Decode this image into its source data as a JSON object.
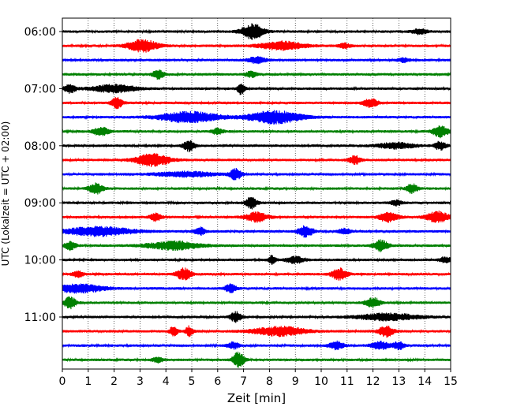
{
  "chart_data": {
    "type": "line",
    "title": "",
    "xlabel": "Zeit  [min]",
    "ylabel": "UTC (Lokalzeit = UTC + 02:00)",
    "xlim": [
      0,
      15
    ],
    "x_ticks": [
      "0",
      "1",
      "2",
      "3",
      "4",
      "5",
      "6",
      "7",
      "8",
      "9",
      "10",
      "11",
      "12",
      "13",
      "14",
      "15"
    ],
    "y_ticks": [
      "06:00",
      "07:00",
      "08:00",
      "09:00",
      "10:00",
      "11:00"
    ],
    "row_interval_min": 15,
    "start_time": "06:00",
    "grid_vertical": true,
    "color_cycle": [
      "#000000",
      "#ff0000",
      "#0000ff",
      "#008000"
    ],
    "rows": [
      {
        "time": "06:00",
        "color": "#000000",
        "events": [
          {
            "t": 7.35,
            "amp": 1.8,
            "dur": 0.6
          },
          {
            "t": 13.8,
            "amp": 0.6,
            "dur": 0.4
          }
        ]
      },
      {
        "time": "06:15",
        "color": "#ff0000",
        "events": [
          {
            "t": 3.1,
            "amp": 1.5,
            "dur": 0.8
          },
          {
            "t": 8.5,
            "amp": 1.0,
            "dur": 1.2
          },
          {
            "t": 10.9,
            "amp": 0.6,
            "dur": 0.3
          }
        ]
      },
      {
        "time": "06:30",
        "color": "#0000ff",
        "events": [
          {
            "t": 7.5,
            "amp": 0.7,
            "dur": 0.5
          },
          {
            "t": 13.2,
            "amp": 0.5,
            "dur": 0.3
          }
        ]
      },
      {
        "time": "06:45",
        "color": "#008000",
        "events": [
          {
            "t": 3.7,
            "amp": 1.1,
            "dur": 0.3
          },
          {
            "t": 7.3,
            "amp": 0.7,
            "dur": 0.3
          }
        ]
      },
      {
        "time": "07:00",
        "color": "#000000",
        "events": [
          {
            "t": 0.3,
            "amp": 1.1,
            "dur": 0.3
          },
          {
            "t": 2.0,
            "amp": 0.9,
            "dur": 1.2
          },
          {
            "t": 6.9,
            "amp": 1.3,
            "dur": 0.2
          }
        ]
      },
      {
        "time": "07:15",
        "color": "#ff0000",
        "events": [
          {
            "t": 2.1,
            "amp": 1.3,
            "dur": 0.3
          },
          {
            "t": 11.9,
            "amp": 1.0,
            "dur": 0.4
          }
        ]
      },
      {
        "time": "07:30",
        "color": "#0000ff",
        "events": [
          {
            "t": 4.9,
            "amp": 1.3,
            "dur": 1.6
          },
          {
            "t": 8.2,
            "amp": 1.5,
            "dur": 1.4
          }
        ]
      },
      {
        "time": "07:45",
        "color": "#008000",
        "events": [
          {
            "t": 1.5,
            "amp": 1.1,
            "dur": 0.4
          },
          {
            "t": 6.0,
            "amp": 0.7,
            "dur": 0.3
          },
          {
            "t": 14.6,
            "amp": 1.4,
            "dur": 0.4
          }
        ]
      },
      {
        "time": "08:00",
        "color": "#000000",
        "events": [
          {
            "t": 4.9,
            "amp": 1.3,
            "dur": 0.3
          },
          {
            "t": 12.9,
            "amp": 0.7,
            "dur": 1.0
          },
          {
            "t": 14.6,
            "amp": 1.0,
            "dur": 0.3
          }
        ]
      },
      {
        "time": "08:15",
        "color": "#ff0000",
        "events": [
          {
            "t": 3.5,
            "amp": 1.5,
            "dur": 0.9
          },
          {
            "t": 11.3,
            "amp": 1.0,
            "dur": 0.3
          }
        ]
      },
      {
        "time": "08:30",
        "color": "#0000ff",
        "events": [
          {
            "t": 4.8,
            "amp": 0.6,
            "dur": 1.6
          },
          {
            "t": 6.7,
            "amp": 1.3,
            "dur": 0.3
          }
        ]
      },
      {
        "time": "08:45",
        "color": "#008000",
        "events": [
          {
            "t": 1.3,
            "amp": 1.2,
            "dur": 0.4
          },
          {
            "t": 13.5,
            "amp": 1.1,
            "dur": 0.3
          }
        ]
      },
      {
        "time": "09:00",
        "color": "#000000",
        "events": [
          {
            "t": 7.3,
            "amp": 1.4,
            "dur": 0.3
          },
          {
            "t": 12.9,
            "amp": 0.6,
            "dur": 0.3
          }
        ]
      },
      {
        "time": "09:15",
        "color": "#ff0000",
        "events": [
          {
            "t": 3.6,
            "amp": 1.0,
            "dur": 0.3
          },
          {
            "t": 7.5,
            "amp": 1.1,
            "dur": 0.6
          },
          {
            "t": 12.6,
            "amp": 1.2,
            "dur": 0.5
          },
          {
            "t": 14.5,
            "amp": 1.3,
            "dur": 0.6
          }
        ]
      },
      {
        "time": "09:30",
        "color": "#0000ff",
        "events": [
          {
            "t": 1.4,
            "amp": 1.1,
            "dur": 1.8
          },
          {
            "t": 5.3,
            "amp": 0.9,
            "dur": 0.3
          },
          {
            "t": 9.4,
            "amp": 1.3,
            "dur": 0.4
          },
          {
            "t": 10.9,
            "amp": 0.7,
            "dur": 0.3
          }
        ]
      },
      {
        "time": "09:45",
        "color": "#008000",
        "events": [
          {
            "t": 0.3,
            "amp": 1.0,
            "dur": 0.3
          },
          {
            "t": 4.3,
            "amp": 1.0,
            "dur": 1.4
          },
          {
            "t": 12.3,
            "amp": 1.3,
            "dur": 0.4
          }
        ]
      },
      {
        "time": "10:00",
        "color": "#000000",
        "events": [
          {
            "t": 8.1,
            "amp": 1.0,
            "dur": 0.2
          },
          {
            "t": 9.0,
            "amp": 0.8,
            "dur": 0.5
          },
          {
            "t": 14.8,
            "amp": 0.7,
            "dur": 0.3
          }
        ]
      },
      {
        "time": "10:15",
        "color": "#ff0000",
        "events": [
          {
            "t": 4.7,
            "amp": 1.4,
            "dur": 0.4
          },
          {
            "t": 10.7,
            "amp": 1.4,
            "dur": 0.4
          },
          {
            "t": 0.6,
            "amp": 0.7,
            "dur": 0.3
          }
        ]
      },
      {
        "time": "10:30",
        "color": "#0000ff",
        "events": [
          {
            "t": 0.6,
            "amp": 1.0,
            "dur": 1.4
          },
          {
            "t": 6.5,
            "amp": 1.0,
            "dur": 0.3
          }
        ]
      },
      {
        "time": "10:45",
        "color": "#008000",
        "events": [
          {
            "t": 0.3,
            "amp": 1.5,
            "dur": 0.3
          },
          {
            "t": 12.0,
            "amp": 1.2,
            "dur": 0.4
          }
        ]
      },
      {
        "time": "11:00",
        "color": "#000000",
        "events": [
          {
            "t": 6.7,
            "amp": 1.2,
            "dur": 0.3
          },
          {
            "t": 12.6,
            "amp": 0.8,
            "dur": 1.6
          }
        ]
      },
      {
        "time": "11:15",
        "color": "#ff0000",
        "events": [
          {
            "t": 4.3,
            "amp": 1.4,
            "dur": 0.2
          },
          {
            "t": 4.9,
            "amp": 1.2,
            "dur": 0.2
          },
          {
            "t": 8.4,
            "amp": 1.1,
            "dur": 1.4
          },
          {
            "t": 12.5,
            "amp": 1.3,
            "dur": 0.4
          }
        ]
      },
      {
        "time": "11:30",
        "color": "#0000ff",
        "events": [
          {
            "t": 6.6,
            "amp": 0.8,
            "dur": 0.3
          },
          {
            "t": 10.6,
            "amp": 0.9,
            "dur": 0.4
          },
          {
            "t": 12.3,
            "amp": 0.9,
            "dur": 0.5
          },
          {
            "t": 13.0,
            "amp": 0.9,
            "dur": 0.3
          }
        ]
      },
      {
        "time": "11:45",
        "color": "#008000",
        "events": [
          {
            "t": 3.7,
            "amp": 0.6,
            "dur": 0.3
          },
          {
            "t": 6.8,
            "amp": 1.9,
            "dur": 0.3
          }
        ]
      }
    ]
  }
}
